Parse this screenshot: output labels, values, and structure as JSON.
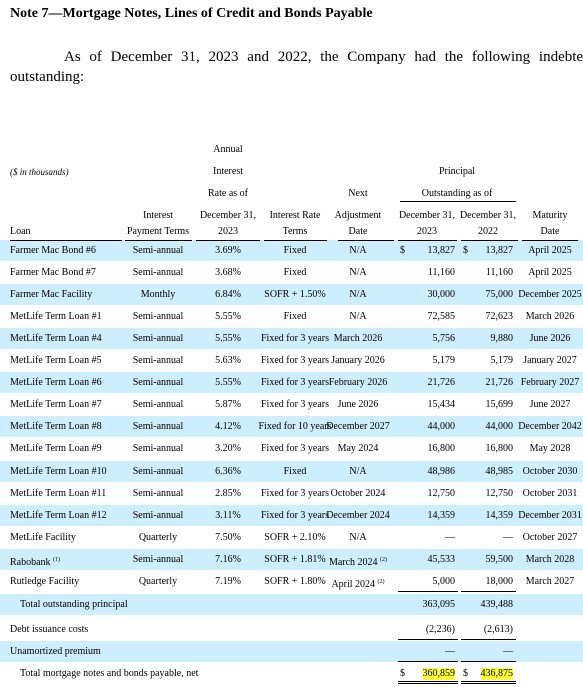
{
  "title": "Note 7—Mortgage Notes, Lines of Credit and Bonds Payable",
  "paragraph": {
    "line1": "As of December 31, 2023 and 2022, the Company had the following indebtedne",
    "line2": "outstanding:"
  },
  "table": {
    "units": "($ in thousands)",
    "header": {
      "loan": "Loan",
      "payment": [
        "Interest",
        "Payment Terms"
      ],
      "rate": [
        "Annual",
        "Interest",
        "Rate as of",
        "December 31,",
        "2023"
      ],
      "rate_terms": [
        "Interest Rate",
        "Terms"
      ],
      "next": [
        "Next",
        "Adjustment",
        "Date"
      ],
      "principal": [
        "Principal",
        "Outstanding as of"
      ],
      "p2023": [
        "December 31,",
        "2023"
      ],
      "p2022": [
        "December 31,",
        "2022"
      ],
      "maturity": [
        "Maturity",
        "Date"
      ]
    },
    "rows": [
      {
        "loan": "Farmer Mac Bond #6",
        "payment": "Semi-annual",
        "rate": "3.69%",
        "rate_terms": "Fixed",
        "next": "N/A",
        "d2023": "$",
        "p2023": "13,827",
        "d2022": "$",
        "p2022": "13,827",
        "maturity": "April 2025"
      },
      {
        "loan": "Farmer Mac Bond #7",
        "payment": "Semi-annual",
        "rate": "3.68%",
        "rate_terms": "Fixed",
        "next": "N/A",
        "p2023": "11,160",
        "p2022": "11,160",
        "maturity": "April 2025"
      },
      {
        "loan": "Farmer Mac Facility",
        "payment": "Monthly",
        "rate": "6.84%",
        "rate_terms": "SOFR + 1.50%",
        "next": "N/A",
        "p2023": "30,000",
        "p2022": "75,000",
        "maturity": "December 2025"
      },
      {
        "loan": "MetLife Term Loan #1",
        "payment": "Semi-annual",
        "rate": "5.55%",
        "rate_terms": "Fixed",
        "next": "N/A",
        "p2023": "72,585",
        "p2022": "72,623",
        "maturity": "March 2026"
      },
      {
        "loan": "MetLife Term Loan #4",
        "payment": "Semi-annual",
        "rate": "5.55%",
        "rate_terms": "Fixed for 3 years",
        "next": "March 2026",
        "p2023": "5,756",
        "p2022": "9,880",
        "maturity": "June 2026"
      },
      {
        "loan": "MetLife Term Loan #5",
        "payment": "Semi-annual",
        "rate": "5.63%",
        "rate_terms": "Fixed for 3 years",
        "next": "January 2026",
        "p2023": "5,179",
        "p2022": "5,179",
        "maturity": "January 2027"
      },
      {
        "loan": "MetLife Term Loan #6",
        "payment": "Semi-annual",
        "rate": "5.55%",
        "rate_terms": "Fixed for 3 years",
        "next": "February 2026",
        "p2023": "21,726",
        "p2022": "21,726",
        "maturity": "February 2027"
      },
      {
        "loan": "MetLife Term Loan #7",
        "payment": "Semi-annual",
        "rate": "5.87%",
        "rate_terms": "Fixed for 3 years",
        "next": "June 2026",
        "p2023": "15,434",
        "p2022": "15,699",
        "maturity": "June 2027"
      },
      {
        "loan": "MetLife Term Loan #8",
        "payment": "Semi-annual",
        "rate": "4.12%",
        "rate_terms": "Fixed for 10 years",
        "next": "December 2027",
        "p2023": "44,000",
        "p2022": "44,000",
        "maturity": "December 2042"
      },
      {
        "loan": "MetLife Term Loan #9",
        "payment": "Semi-annual",
        "rate": "3.20%",
        "rate_terms": "Fixed for 3 years",
        "next": "May 2024",
        "p2023": "16,800",
        "p2022": "16,800",
        "maturity": "May 2028"
      },
      {
        "loan": "MetLife Term Loan #10",
        "payment": "Semi-annual",
        "rate": "6.36%",
        "rate_terms": "Fixed",
        "next": "N/A",
        "p2023": "48,986",
        "p2022": "48,985",
        "maturity": "October 2030"
      },
      {
        "loan": "MetLife Term Loan #11",
        "payment": "Semi-annual",
        "rate": "2.85%",
        "rate_terms": "Fixed for 3 years",
        "next": "October 2024",
        "p2023": "12,750",
        "p2022": "12,750",
        "maturity": "October 2031"
      },
      {
        "loan": "MetLife Term Loan #12",
        "payment": "Semi-annual",
        "rate": "3.11%",
        "rate_terms": "Fixed for 3 years",
        "next": "December 2024",
        "p2023": "14,359",
        "p2022": "14,359",
        "maturity": "December 2031"
      },
      {
        "loan": "MetLife Facility",
        "payment": "Quarterly",
        "rate": "7.50%",
        "rate_terms": "SOFR + 2.10%",
        "next": "N/A",
        "p2023": "—",
        "p2022": "—",
        "maturity": "October 2027"
      },
      {
        "loan": "Rabobank",
        "loan_note": "(1)",
        "payment": "Semi-annual",
        "rate": "7.16%",
        "rate_terms": "SOFR + 1.81%",
        "next": "March 2024",
        "next_note": "(2)",
        "p2023": "45,533",
        "p2022": "59,500",
        "maturity": "March 2028"
      },
      {
        "loan": "Rutledge Facility",
        "payment": "Quarterly",
        "rate": "7.19%",
        "rate_terms": "SOFR + 1.80%",
        "next": "April 2024",
        "next_note": "(2)",
        "p2023": "5,000",
        "p2022": "18,000",
        "maturity": "March 2027"
      },
      {
        "loan": "Total outstanding principal",
        "p2023": "363,095",
        "p2022": "439,488"
      },
      {
        "loan": "Debt issuance costs",
        "p2023": "(2,236)",
        "p2022": "(2,613)"
      },
      {
        "loan": "Unamortized premium",
        "p2023": "—",
        "p2022": "—"
      },
      {
        "loan": "Total mortgage notes and bonds payable, net",
        "d2023": "$",
        "p2023": "360,859",
        "d2022": "$",
        "p2022": "436,875"
      }
    ]
  }
}
